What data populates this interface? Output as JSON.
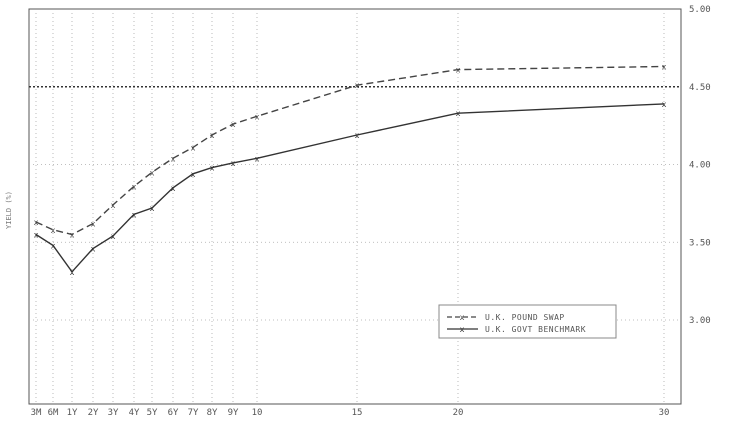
{
  "chart_data": {
    "type": "line",
    "title": "",
    "xlabel": "",
    "ylabel": "YIELD (%)",
    "ylim": [
      3.0,
      5.0
    ],
    "grid": true,
    "legend_position": "bottom-right",
    "x_tick_labels": [
      "3M",
      "6M",
      "1Y",
      "2Y",
      "3Y",
      "4Y",
      "5Y",
      "6Y",
      "7Y",
      "8Y",
      "9Y",
      "10",
      "15",
      "20",
      "30"
    ],
    "y_tick_labels": [
      "3.00",
      "3.50",
      "4.00",
      "4.50",
      "5.00"
    ],
    "y_ticks": [
      3.0,
      3.5,
      4.0,
      4.5,
      5.0
    ],
    "reference_line": 4.5,
    "series": [
      {
        "name": "U.K. POUND SWAP",
        "style": "dashed",
        "color": "#444444",
        "values": [
          3.63,
          3.58,
          3.55,
          3.62,
          3.74,
          3.86,
          3.95,
          4.04,
          4.11,
          4.19,
          4.26,
          4.31,
          4.51,
          4.61,
          4.63
        ]
      },
      {
        "name": "U.K. GOVT BENCHMARK",
        "style": "solid",
        "color": "#333333",
        "values": [
          3.55,
          3.48,
          3.31,
          3.46,
          3.54,
          3.68,
          3.72,
          3.85,
          3.94,
          3.98,
          4.01,
          4.04,
          4.19,
          4.33,
          4.39
        ]
      }
    ]
  }
}
